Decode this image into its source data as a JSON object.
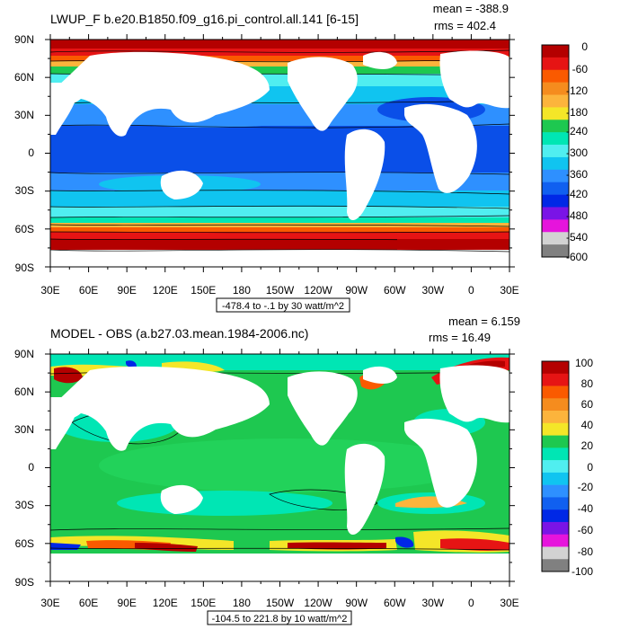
{
  "panels": [
    {
      "title": "LWUP_F b.e20.B1850.f09_g16.pi_control.all.141 [6-15]",
      "mean": "mean = -388.9",
      "rms": "rms = 402.4",
      "range_label": "-478.4 to -.1 by 30 watt/m^2",
      "lat_labels": [
        "90N",
        "60N",
        "30N",
        "0",
        "30S",
        "60S",
        "90S"
      ],
      "lon_labels": [
        "30E",
        "60E",
        "90E",
        "120E",
        "150E",
        "180",
        "150W",
        "120W",
        "90W",
        "60W",
        "30W",
        "0",
        "30E"
      ],
      "colorbar": {
        "labels": [
          "0",
          "-60",
          "-120",
          "-180",
          "-240",
          "-300",
          "-360",
          "-420",
          "-480",
          "-540",
          "-600"
        ],
        "colors": [
          "#b40000",
          "#e61414",
          "#fa5a00",
          "#f58c1e",
          "#fcb43c",
          "#f4e628",
          "#1ec850",
          "#00e6b4",
          "#50eef0",
          "#10c4f0",
          "#2e90ff",
          "#1060f0",
          "#0028e6",
          "#7a14e6",
          "#e614dc",
          "#d2d2d2",
          "#808080"
        ]
      }
    },
    {
      "title": "MODEL - OBS (a.b27.03.mean.1984-2006.nc)",
      "mean": "mean = 6.159",
      "rms": "rms = 16.49",
      "range_label": "-104.5 to 221.8 by 10 watt/m^2",
      "lat_labels": [
        "90N",
        "60N",
        "30N",
        "0",
        "30S",
        "60S",
        "90S"
      ],
      "lon_labels": [
        "30E",
        "60E",
        "90E",
        "120E",
        "150E",
        "180",
        "150W",
        "120W",
        "90W",
        "60W",
        "30W",
        "0",
        "30E"
      ],
      "colorbar": {
        "labels": [
          "100",
          "80",
          "60",
          "40",
          "20",
          "0",
          "-20",
          "-40",
          "-60",
          "-80",
          "-100"
        ],
        "colors": [
          "#b40000",
          "#e61414",
          "#fa5a00",
          "#f58c1e",
          "#fcb43c",
          "#f4e628",
          "#1ec850",
          "#00e6b4",
          "#50eef0",
          "#10c4f0",
          "#2e90ff",
          "#1060f0",
          "#0028e6",
          "#7a14e6",
          "#e614dc",
          "#d2d2d2",
          "#808080"
        ]
      }
    }
  ]
}
